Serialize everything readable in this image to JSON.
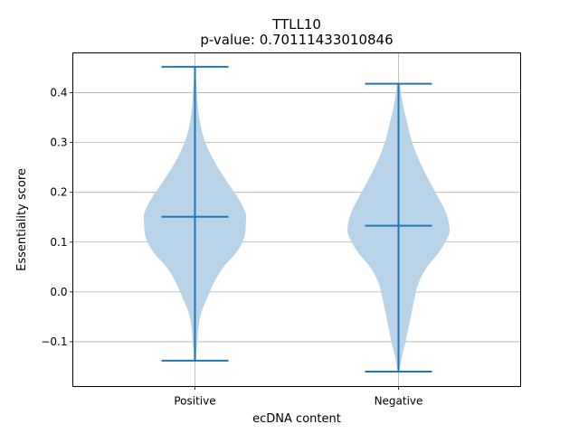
{
  "chart_data": {
    "type": "violin",
    "title": "TTLL10",
    "subtitle": "p-value: 0.70111433010846",
    "xlabel": "ecDNA content",
    "ylabel": "Essentiality score",
    "categories": [
      "Positive",
      "Negative"
    ],
    "ylim": [
      -0.19,
      0.48
    ],
    "yticks": [
      -0.1,
      0.0,
      0.1,
      0.2,
      0.3,
      0.4
    ],
    "ytick_labels": [
      "−0.1",
      "0.0",
      "0.1",
      "0.2",
      "0.3",
      "0.4"
    ],
    "grid": true,
    "colors": {
      "body": "#b9d4e8",
      "lines": "#1f77b4",
      "grid": "#b0b0b0"
    },
    "violins": [
      {
        "category": "Positive",
        "min": -0.138,
        "max": 0.452,
        "median": 0.151,
        "density_y": [
          -0.138,
          -0.12,
          -0.1,
          -0.07,
          -0.04,
          -0.01,
          0.02,
          0.05,
          0.08,
          0.11,
          0.14,
          0.16,
          0.19,
          0.22,
          0.25,
          0.28,
          0.31,
          0.34,
          0.37,
          0.4,
          0.43,
          0.452
        ],
        "density_w": [
          0.02,
          0.03,
          0.045,
          0.07,
          0.13,
          0.25,
          0.38,
          0.56,
          0.82,
          0.97,
          1.0,
          0.99,
          0.84,
          0.64,
          0.45,
          0.29,
          0.17,
          0.1,
          0.06,
          0.04,
          0.02,
          0.01
        ]
      },
      {
        "category": "Negative",
        "min": -0.16,
        "max": 0.418,
        "median": 0.133,
        "density_y": [
          -0.16,
          -0.14,
          -0.12,
          -0.1,
          -0.07,
          -0.04,
          -0.01,
          0.02,
          0.05,
          0.08,
          0.11,
          0.13,
          0.16,
          0.19,
          0.22,
          0.25,
          0.28,
          0.31,
          0.34,
          0.37,
          0.4,
          0.418
        ],
        "density_w": [
          0.01,
          0.05,
          0.09,
          0.14,
          0.2,
          0.26,
          0.32,
          0.4,
          0.56,
          0.8,
          0.97,
          1.0,
          0.93,
          0.78,
          0.62,
          0.47,
          0.34,
          0.24,
          0.17,
          0.1,
          0.05,
          0.02
        ]
      }
    ]
  }
}
